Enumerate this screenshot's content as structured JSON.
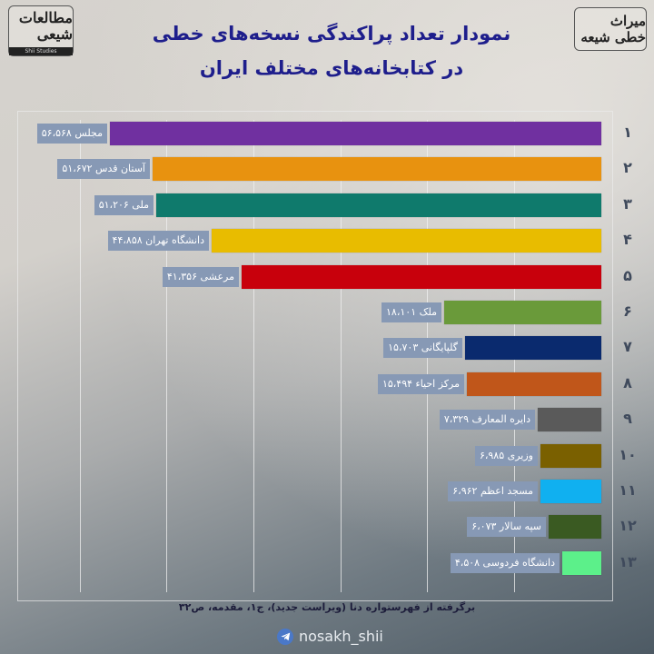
{
  "header": {
    "title_line1": "نمودار تعداد پراکندگی نسخه‌های خطی",
    "title_line2": "در کتابخانه‌های مختلف ایران",
    "logo_left": {
      "text": "مطالعات شیعی",
      "subtitle": "Shii Studies"
    },
    "logo_right": {
      "text": "میراث خطی شیعه"
    }
  },
  "footer": {
    "source": "برگرفته از فهرستواره دنا (ویراست جدید)، ج۱، مقدمه، ص۳۲",
    "handle": "nosakh_shii",
    "handle_icon": "telegram-icon"
  },
  "chart_data": {
    "type": "bar",
    "orientation": "horizontal",
    "title": "نمودار تعداد پراکندگی نسخه‌های خطی در کتابخانه‌های مختلف ایران",
    "xlabel": "",
    "ylabel": "",
    "grid": true,
    "legend": "none",
    "categories": [
      "مجلس",
      "آستان قدس",
      "ملی",
      "دانشگاه تهران",
      "مرعشی",
      "ملک",
      "گلپایگانی",
      "مرکز احیاء",
      "دایره المعارف",
      "وزیری",
      "مسجد اعظم",
      "سپه سالار",
      "دانشگاه فردوسی"
    ],
    "values": [
      56568,
      51672,
      51206,
      44858,
      41356,
      18101,
      15703,
      15494,
      7329,
      6985,
      6962,
      6073,
      4508
    ],
    "ranks": [
      "۱",
      "۲",
      "۳",
      "۴",
      "۵",
      "۶",
      "۷",
      "۸",
      "۹",
      "۱۰",
      "۱۱",
      "۱۲",
      "۱۳"
    ],
    "value_labels": [
      "۵۶،۵۶۸",
      "۵۱،۶۷۲",
      "۵۱،۲۰۶",
      "۴۴،۸۵۸",
      "۴۱،۳۵۶",
      "۱۸،۱۰۱",
      "۱۵،۷۰۳",
      "۱۵،۴۹۴",
      "۷،۳۲۹",
      "۶،۹۸۵",
      "۶،۹۶۲",
      "۶،۰۷۳",
      "۴،۵۰۸"
    ],
    "colors": [
      "#7030a0",
      "#e8920f",
      "#0f7a6c",
      "#e8bc00",
      "#c8000c",
      "#6a9a3a",
      "#0a2a6e",
      "#c0561a",
      "#5a5a5a",
      "#7a6000",
      "#10b0f0",
      "#3a5a22",
      "#5cf08a"
    ],
    "label_color": "#8799b5",
    "rank_color": "#3f4a5c"
  }
}
